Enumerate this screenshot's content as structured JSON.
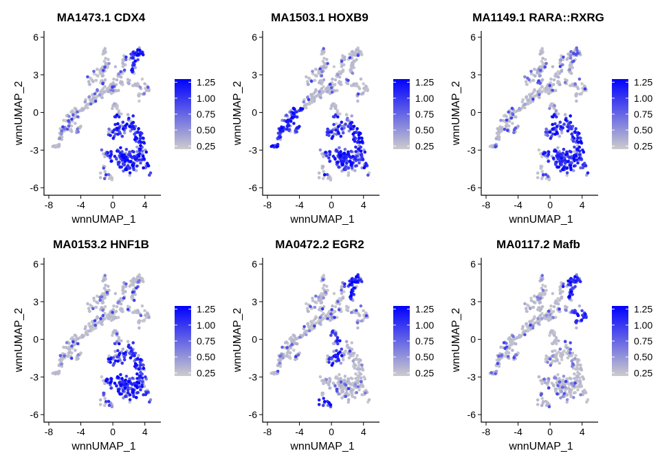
{
  "chart_data": [
    {
      "type": "scatter",
      "title": "MA1473.1 CDX4",
      "xlabel": "wnnUMAP_1",
      "ylabel": "wnnUMAP_2",
      "xlim": [
        -8.6,
        6.0
      ],
      "ylim": [
        -6.6,
        6.5
      ],
      "xticks": [
        -8,
        -4,
        0,
        4
      ],
      "yticks": [
        -6,
        -3,
        0,
        3,
        6
      ],
      "color_scale": {
        "low": "#CCCCCC",
        "high": "#0000FF",
        "min": 0.2,
        "max": 1.3,
        "breaks": [
          "0.25",
          "0.50",
          "0.75",
          "1.00",
          "1.25"
        ]
      },
      "regions_high": [
        "lower-right cluster",
        "top-right arm"
      ]
    },
    {
      "type": "scatter",
      "title": "MA1503.1 HOXB9",
      "xlabel": "wnnUMAP_1",
      "ylabel": "wnnUMAP_2",
      "xlim": [
        -8.6,
        6.0
      ],
      "ylim": [
        -6.6,
        6.5
      ],
      "xticks": [
        -8,
        -4,
        0,
        4
      ],
      "yticks": [
        -6,
        -3,
        0,
        3,
        6
      ],
      "color_scale": {
        "low": "#CCCCCC",
        "high": "#0000FF",
        "min": 0.2,
        "max": 1.3,
        "breaks": [
          "0.25",
          "0.50",
          "0.75",
          "1.00",
          "1.25"
        ]
      },
      "regions_high": [
        "lower-right cluster",
        "left arm"
      ]
    },
    {
      "type": "scatter",
      "title": "MA1149.1 RARA::RXRG",
      "xlabel": "wnnUMAP_1",
      "ylabel": "wnnUMAP_2",
      "xlim": [
        -8.6,
        6.0
      ],
      "ylim": [
        -6.6,
        6.5
      ],
      "xticks": [
        -8,
        -4,
        0,
        4
      ],
      "yticks": [
        -6,
        -3,
        0,
        3,
        6
      ],
      "color_scale": {
        "low": "#CCCCCC",
        "high": "#0000FF",
        "min": 0.2,
        "max": 1.3,
        "breaks": [
          "0.25",
          "0.50",
          "0.75",
          "1.00",
          "1.25"
        ]
      },
      "regions_high": [
        "lower-right cluster"
      ]
    },
    {
      "type": "scatter",
      "title": "MA0153.2 HNF1B",
      "xlabel": "wnnUMAP_1",
      "ylabel": "wnnUMAP_2",
      "xlim": [
        -8.6,
        6.0
      ],
      "ylim": [
        -6.6,
        6.5
      ],
      "xticks": [
        -8,
        -4,
        0,
        4
      ],
      "yticks": [
        -6,
        -3,
        0,
        3,
        6
      ],
      "color_scale": {
        "low": "#CCCCCC",
        "high": "#0000FF",
        "min": 0.2,
        "max": 1.3,
        "breaks": [
          "0.25",
          "0.50",
          "0.75",
          "1.00",
          "1.25"
        ]
      },
      "regions_high": [
        "lower-right cluster"
      ]
    },
    {
      "type": "scatter",
      "title": "MA0472.2 EGR2",
      "xlabel": "wnnUMAP_1",
      "ylabel": "wnnUMAP_2",
      "xlim": [
        -8.6,
        6.0
      ],
      "ylim": [
        -6.6,
        6.5
      ],
      "xticks": [
        -8,
        -4,
        0,
        4
      ],
      "yticks": [
        -6,
        -3,
        0,
        3,
        6
      ],
      "color_scale": {
        "low": "#CCCCCC",
        "high": "#0000FF",
        "min": 0.2,
        "max": 1.3,
        "breaks": [
          "0.25",
          "0.50",
          "0.75",
          "1.00",
          "1.25"
        ]
      },
      "regions_high": [
        "top-right arm",
        "center stem",
        "bottom-left cluster"
      ]
    },
    {
      "type": "scatter",
      "title": "MA0117.2 Mafb",
      "xlabel": "wnnUMAP_1",
      "ylabel": "wnnUMAP_2",
      "xlim": [
        -8.6,
        6.0
      ],
      "ylim": [
        -6.6,
        6.5
      ],
      "xticks": [
        -8,
        -4,
        0,
        4
      ],
      "yticks": [
        -6,
        -3,
        0,
        3,
        6
      ],
      "color_scale": {
        "low": "#CCCCCC",
        "high": "#0000FF",
        "min": 0.2,
        "max": 1.3,
        "breaks": [
          "0.25",
          "0.50",
          "0.75",
          "1.00",
          "1.25"
        ]
      },
      "regions_high": [
        "top-right arm",
        "right arm"
      ]
    }
  ]
}
